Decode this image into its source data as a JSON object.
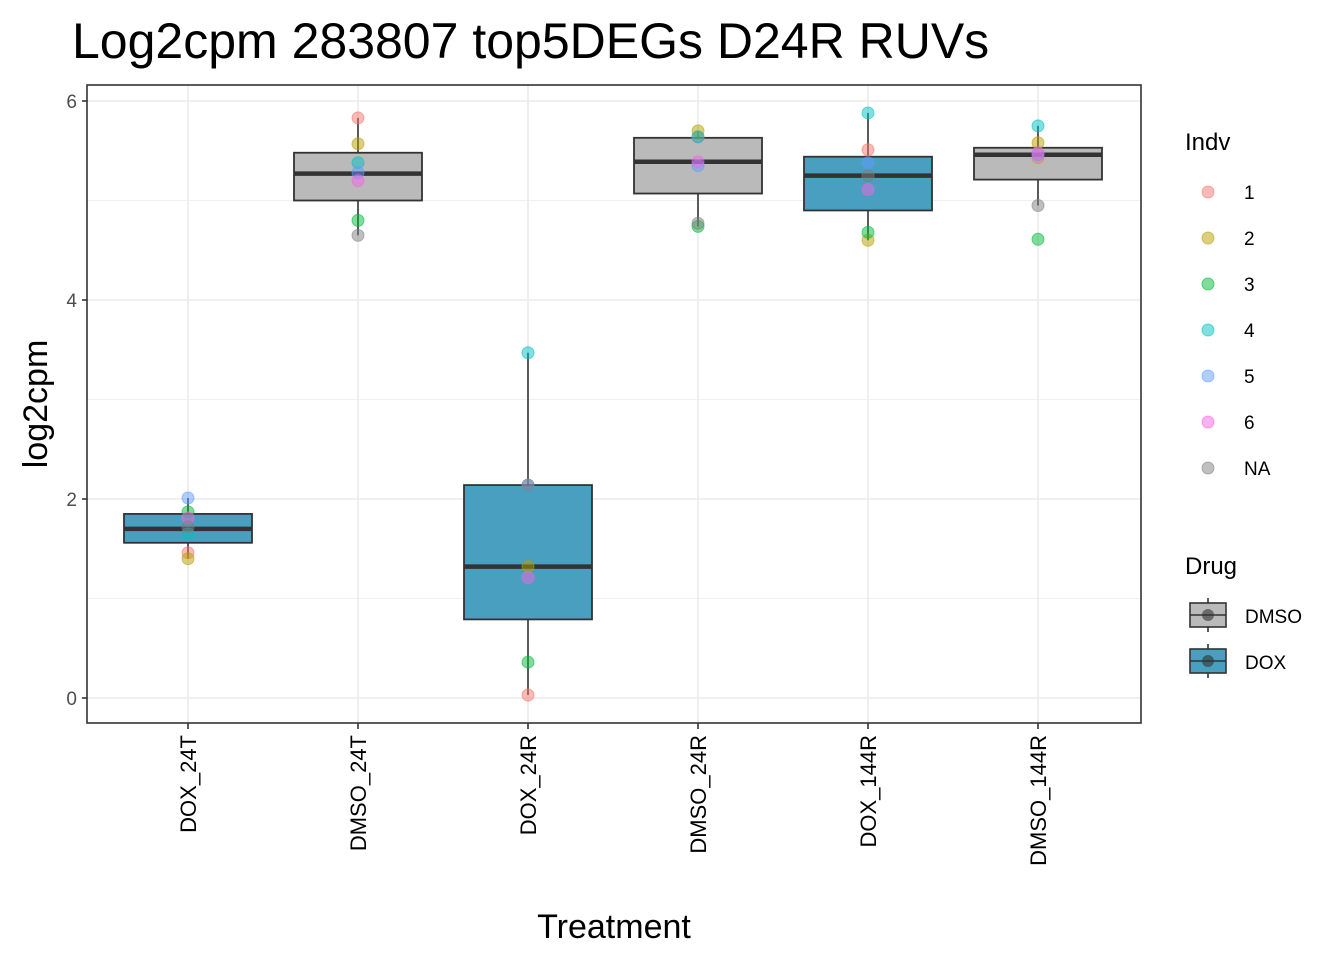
{
  "chart_data": {
    "type": "box",
    "title": "Log2cpm 283807 top5DEGs D24R RUVs",
    "xlabel": "Treatment",
    "ylabel": "log2cpm",
    "ylim": [
      -0.25,
      6.3
    ],
    "yticks": [
      0,
      2,
      4,
      6
    ],
    "grid": true,
    "categories": [
      "DOX_24T",
      "DMSO_24T",
      "DOX_24R",
      "DMSO_24R",
      "DOX_144R",
      "DMSO_144R"
    ],
    "drug": [
      "DOX",
      "DMSO",
      "DOX",
      "DMSO",
      "DOX",
      "DMSO"
    ],
    "boxes": [
      {
        "category": "DOX_24T",
        "q1": 1.56,
        "median": 1.7,
        "q3": 1.85,
        "whisker_low": 1.4,
        "whisker_high": 2.01
      },
      {
        "category": "DMSO_24T",
        "q1": 5.0,
        "median": 5.27,
        "q3": 5.48,
        "whisker_low": 4.65,
        "whisker_high": 5.83
      },
      {
        "category": "DOX_24R",
        "q1": 0.79,
        "median": 1.32,
        "q3": 2.14,
        "whisker_low": 0.03,
        "whisker_high": 3.47
      },
      {
        "category": "DMSO_24R",
        "q1": 5.07,
        "median": 5.39,
        "q3": 5.63,
        "whisker_low": 4.74,
        "whisker_high": 5.7
      },
      {
        "category": "DOX_144R",
        "q1": 4.9,
        "median": 5.25,
        "q3": 5.44,
        "whisker_low": 4.6,
        "whisker_high": 5.88
      },
      {
        "category": "DMSO_144R",
        "q1": 5.21,
        "median": 5.46,
        "q3": 5.53,
        "whisker_low": 4.95,
        "whisker_high": 5.75
      }
    ],
    "series": [
      {
        "name": "1",
        "values": [
          1.46,
          5.83,
          0.03,
          5.64,
          5.51,
          5.43
        ]
      },
      {
        "name": "2",
        "values": [
          1.4,
          5.57,
          1.32,
          5.7,
          4.6,
          5.58
        ]
      },
      {
        "name": "3",
        "values": [
          1.87,
          4.8,
          0.36,
          4.74,
          4.68,
          4.61
        ]
      },
      {
        "name": "4",
        "values": [
          1.65,
          5.38,
          3.47,
          5.64,
          5.88,
          5.75
        ]
      },
      {
        "name": "5",
        "values": [
          2.01,
          5.28,
          2.14,
          5.35,
          5.38,
          5.46
        ]
      },
      {
        "name": "6",
        "values": [
          1.81,
          5.2,
          1.21,
          5.39,
          5.11,
          5.48
        ]
      },
      {
        "name": "NA",
        "values": [
          1.72,
          4.65,
          2.14,
          4.77,
          5.25,
          4.95
        ]
      }
    ],
    "legend": {
      "placement": "right",
      "indv": {
        "title": "Indv",
        "entries": [
          {
            "label": "1",
            "color": "#F8766D"
          },
          {
            "label": "2",
            "color": "#B79F00"
          },
          {
            "label": "3",
            "color": "#00BA38"
          },
          {
            "label": "4",
            "color": "#00BFC4"
          },
          {
            "label": "5",
            "color": "#619CFF"
          },
          {
            "label": "6",
            "color": "#F564E3"
          },
          {
            "label": "NA",
            "color": "#7F7F7F"
          }
        ]
      },
      "drug": {
        "title": "Drug",
        "entries": [
          {
            "label": "DMSO",
            "color": "#BABABA"
          },
          {
            "label": "DOX",
            "color": "#499FBF"
          }
        ]
      }
    }
  }
}
